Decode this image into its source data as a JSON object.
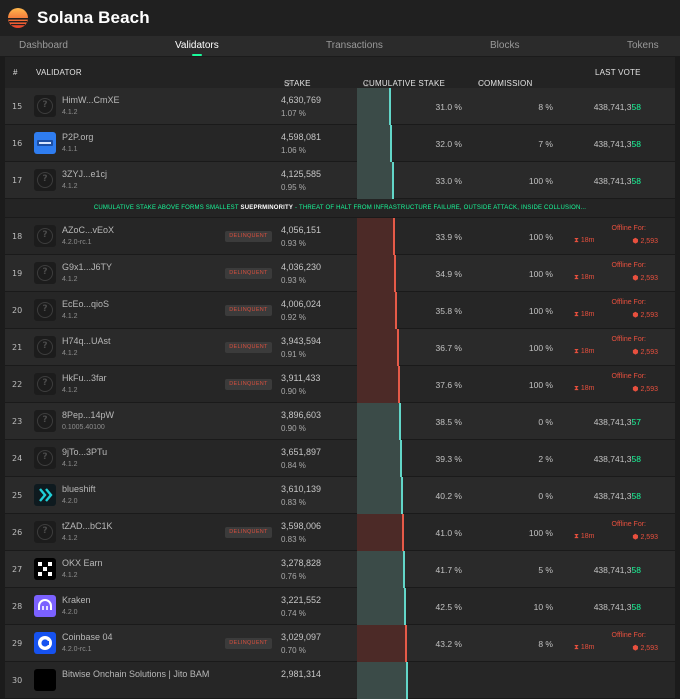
{
  "app": {
    "title": "Solana Beach"
  },
  "nav": {
    "tabs": [
      "Dashboard",
      "Validators",
      "Transactions",
      "Blocks",
      "Tokens"
    ],
    "active": "Validators"
  },
  "table": {
    "headers": {
      "num": "#",
      "validator": "VALIDATOR",
      "stake": "STAKE",
      "cumulative": "CUMULATIVE STAKE",
      "commission": "COMMISSION",
      "last_vote": "LAST VOTE"
    },
    "banner": {
      "pre": "CUMULATIVE STAKE ABOVE FORMS SMALLEST",
      "bold": "SUEPRMINORITY",
      "post": "- THREAT OF HALT FROM INFRASTRUCTURE FAILURE, OUTSIDE ATTACK, INSIDE COLLUSION..."
    },
    "delinquent_label": "DELINQUENT",
    "offline_label": "Offline For:",
    "offline_time": "18m",
    "offline_slots": "2,593",
    "rows": [
      {
        "num": "15",
        "name": "HimW...CmXE",
        "version": "4.1.2",
        "stake": "4,630,769",
        "pct": "1.07 %",
        "cum": "31.0 %",
        "cum_value": 31.0,
        "comm": "8 %",
        "vote_pre": "438,741,3",
        "vote_hl": "58",
        "delinquent": false,
        "avatar": "placeholder"
      },
      {
        "num": "16",
        "name": "P2P.org",
        "version": "4.1.1",
        "stake": "4,598,081",
        "pct": "1.06 %",
        "cum": "32.0 %",
        "cum_value": 32.0,
        "comm": "7 %",
        "vote_pre": "438,741,3",
        "vote_hl": "58",
        "delinquent": false,
        "avatar": "p2p"
      },
      {
        "num": "17",
        "name": "3ZYJ...e1cj",
        "version": "4.1.2",
        "stake": "4,125,585",
        "pct": "0.95 %",
        "cum": "33.0 %",
        "cum_value": 33.0,
        "comm": "100 %",
        "vote_pre": "438,741,3",
        "vote_hl": "58",
        "delinquent": false,
        "avatar": "placeholder"
      },
      {
        "banner": true
      },
      {
        "num": "18",
        "name": "AZoC...vEoX",
        "version": "4.2.0-rc.1",
        "stake": "4,056,151",
        "pct": "0.93 %",
        "cum": "33.9 %",
        "cum_value": 33.9,
        "comm": "100 %",
        "delinquent": true,
        "avatar": "placeholder"
      },
      {
        "num": "19",
        "name": "G9x1...J6TY",
        "version": "4.1.2",
        "stake": "4,036,230",
        "pct": "0.93 %",
        "cum": "34.9 %",
        "cum_value": 34.9,
        "comm": "100 %",
        "delinquent": true,
        "avatar": "placeholder"
      },
      {
        "num": "20",
        "name": "EcEo...qioS",
        "version": "4.1.2",
        "stake": "4,006,024",
        "pct": "0.92 %",
        "cum": "35.8 %",
        "cum_value": 35.8,
        "comm": "100 %",
        "delinquent": true,
        "avatar": "placeholder"
      },
      {
        "num": "21",
        "name": "H74q...UAst",
        "version": "4.1.2",
        "stake": "3,943,594",
        "pct": "0.91 %",
        "cum": "36.7 %",
        "cum_value": 36.7,
        "comm": "100 %",
        "delinquent": true,
        "avatar": "placeholder"
      },
      {
        "num": "22",
        "name": "HkFu...3far",
        "version": "4.1.2",
        "stake": "3,911,433",
        "pct": "0.90 %",
        "cum": "37.6 %",
        "cum_value": 37.6,
        "comm": "100 %",
        "delinquent": true,
        "avatar": "placeholder"
      },
      {
        "num": "23",
        "name": "8Pep...14pW",
        "version": "0.1005.40100",
        "stake": "3,896,603",
        "pct": "0.90 %",
        "cum": "38.5 %",
        "cum_value": 38.5,
        "comm": "0 %",
        "vote_pre": "438,741,3",
        "vote_hl": "57",
        "delinquent": false,
        "avatar": "placeholder"
      },
      {
        "num": "24",
        "name": "9jTo...3PTu",
        "version": "4.1.2",
        "stake": "3,651,897",
        "pct": "0.84 %",
        "cum": "39.3 %",
        "cum_value": 39.3,
        "comm": "2 %",
        "vote_pre": "438,741,3",
        "vote_hl": "58",
        "delinquent": false,
        "avatar": "placeholder"
      },
      {
        "num": "25",
        "name": "blueshift",
        "version": "4.2.0",
        "stake": "3,610,139",
        "pct": "0.83 %",
        "cum": "40.2 %",
        "cum_value": 40.2,
        "comm": "0 %",
        "vote_pre": "438,741,3",
        "vote_hl": "58",
        "delinquent": false,
        "avatar": "blueshift"
      },
      {
        "num": "26",
        "name": "tZAD...bC1K",
        "version": "4.1.2",
        "stake": "3,598,006",
        "pct": "0.83 %",
        "cum": "41.0 %",
        "cum_value": 41.0,
        "comm": "100 %",
        "delinquent": true,
        "avatar": "placeholder"
      },
      {
        "num": "27",
        "name": "OKX Earn",
        "version": "4.1.2",
        "stake": "3,278,828",
        "pct": "0.76 %",
        "cum": "41.7 %",
        "cum_value": 41.7,
        "comm": "5 %",
        "vote_pre": "438,741,3",
        "vote_hl": "58",
        "delinquent": false,
        "avatar": "okx"
      },
      {
        "num": "28",
        "name": "Kraken",
        "version": "4.2.0",
        "stake": "3,221,552",
        "pct": "0.74 %",
        "cum": "42.5 %",
        "cum_value": 42.5,
        "comm": "10 %",
        "vote_pre": "438,741,3",
        "vote_hl": "58",
        "delinquent": false,
        "avatar": "kraken"
      },
      {
        "num": "29",
        "name": "Coinbase 04",
        "version": "4.2.0-rc.1",
        "stake": "3,029,097",
        "pct": "0.70 %",
        "cum": "43.2 %",
        "cum_value": 43.2,
        "comm": "8 %",
        "delinquent": true,
        "avatar": "coinbase"
      },
      {
        "num": "30",
        "name": "Bitwise Onchain Solutions | Jito BAM",
        "version": "",
        "stake": "2,981,314",
        "pct": "",
        "cum": "",
        "cum_value": 43.9,
        "comm": "",
        "vote_pre": "",
        "vote_hl": "",
        "delinquent": false,
        "avatar": "bitwise"
      }
    ]
  },
  "colors": {
    "accent": "#19fb9b",
    "delinquent": "#e8503e",
    "bar_green": "#62d6c8",
    "bar_red": "#e65a48"
  },
  "icons": {
    "logo": "sun-logo-icon",
    "info": "info-icon",
    "sort": "sort-arrows-icon",
    "hourglass": "hourglass-icon",
    "cube": "cube-icon"
  }
}
